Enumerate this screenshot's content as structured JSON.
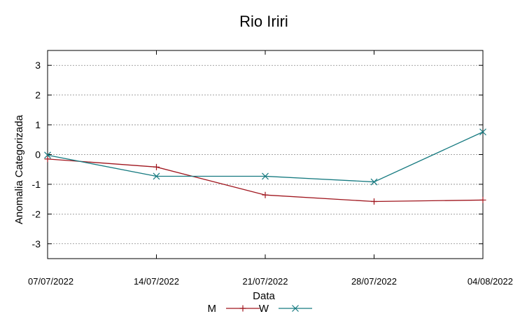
{
  "chart_data": {
    "type": "line",
    "title": "Rio Iriri",
    "xlabel": "Data",
    "ylabel": "Anomalia Categorizada",
    "categories": [
      "07/07/2022",
      "14/07/2022",
      "21/07/2022",
      "28/07/2022",
      "04/08/2022"
    ],
    "ylim": [
      -3.5,
      3.5
    ],
    "yticks": [
      -3,
      -2,
      -1,
      0,
      1,
      2,
      3
    ],
    "grid": true,
    "legend": "bottom-center",
    "series": [
      {
        "name": "M",
        "color": "#a0161e",
        "marker": "plus",
        "values": [
          -0.15,
          -0.42,
          -1.36,
          -1.58,
          -1.53
        ]
      },
      {
        "name": "W",
        "color": "#167a80",
        "marker": "cross",
        "values": [
          -0.02,
          -0.73,
          -0.73,
          -0.92,
          0.76
        ]
      }
    ]
  }
}
